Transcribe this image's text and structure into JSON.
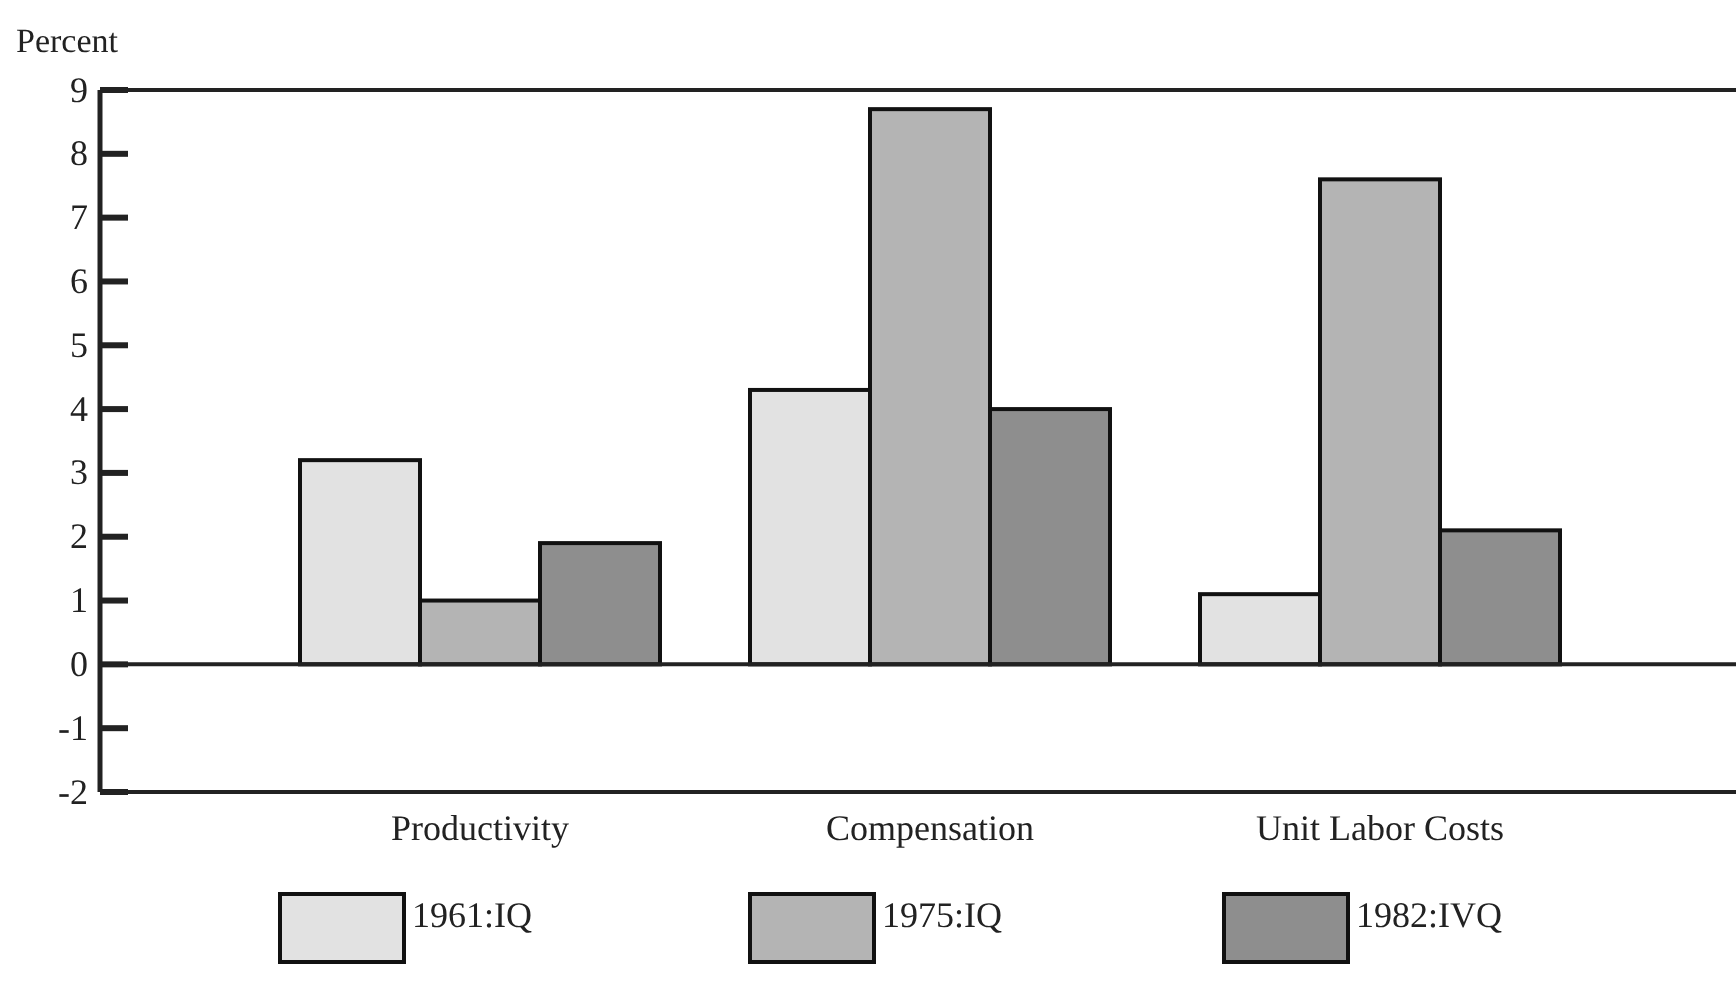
{
  "chart_data": {
    "type": "bar",
    "ylabel": "Percent",
    "categories": [
      "Productivity",
      "Compensation",
      "Unit Labor Costs"
    ],
    "series": [
      {
        "name": "1961:IQ",
        "color": "#e2e2e2",
        "values": [
          3.2,
          4.3,
          1.1
        ]
      },
      {
        "name": "1975:IQ",
        "color": "#b4b4b4",
        "values": [
          1.0,
          8.7,
          7.6
        ]
      },
      {
        "name": "1982:IVQ",
        "color": "#8e8e8e",
        "values": [
          1.9,
          4.0,
          2.1
        ]
      }
    ],
    "ylim": [
      -2,
      9
    ],
    "yticks": [
      -2,
      -1,
      0,
      1,
      2,
      3,
      4,
      5,
      6,
      7,
      8,
      9
    ],
    "legend": "bottom"
  }
}
